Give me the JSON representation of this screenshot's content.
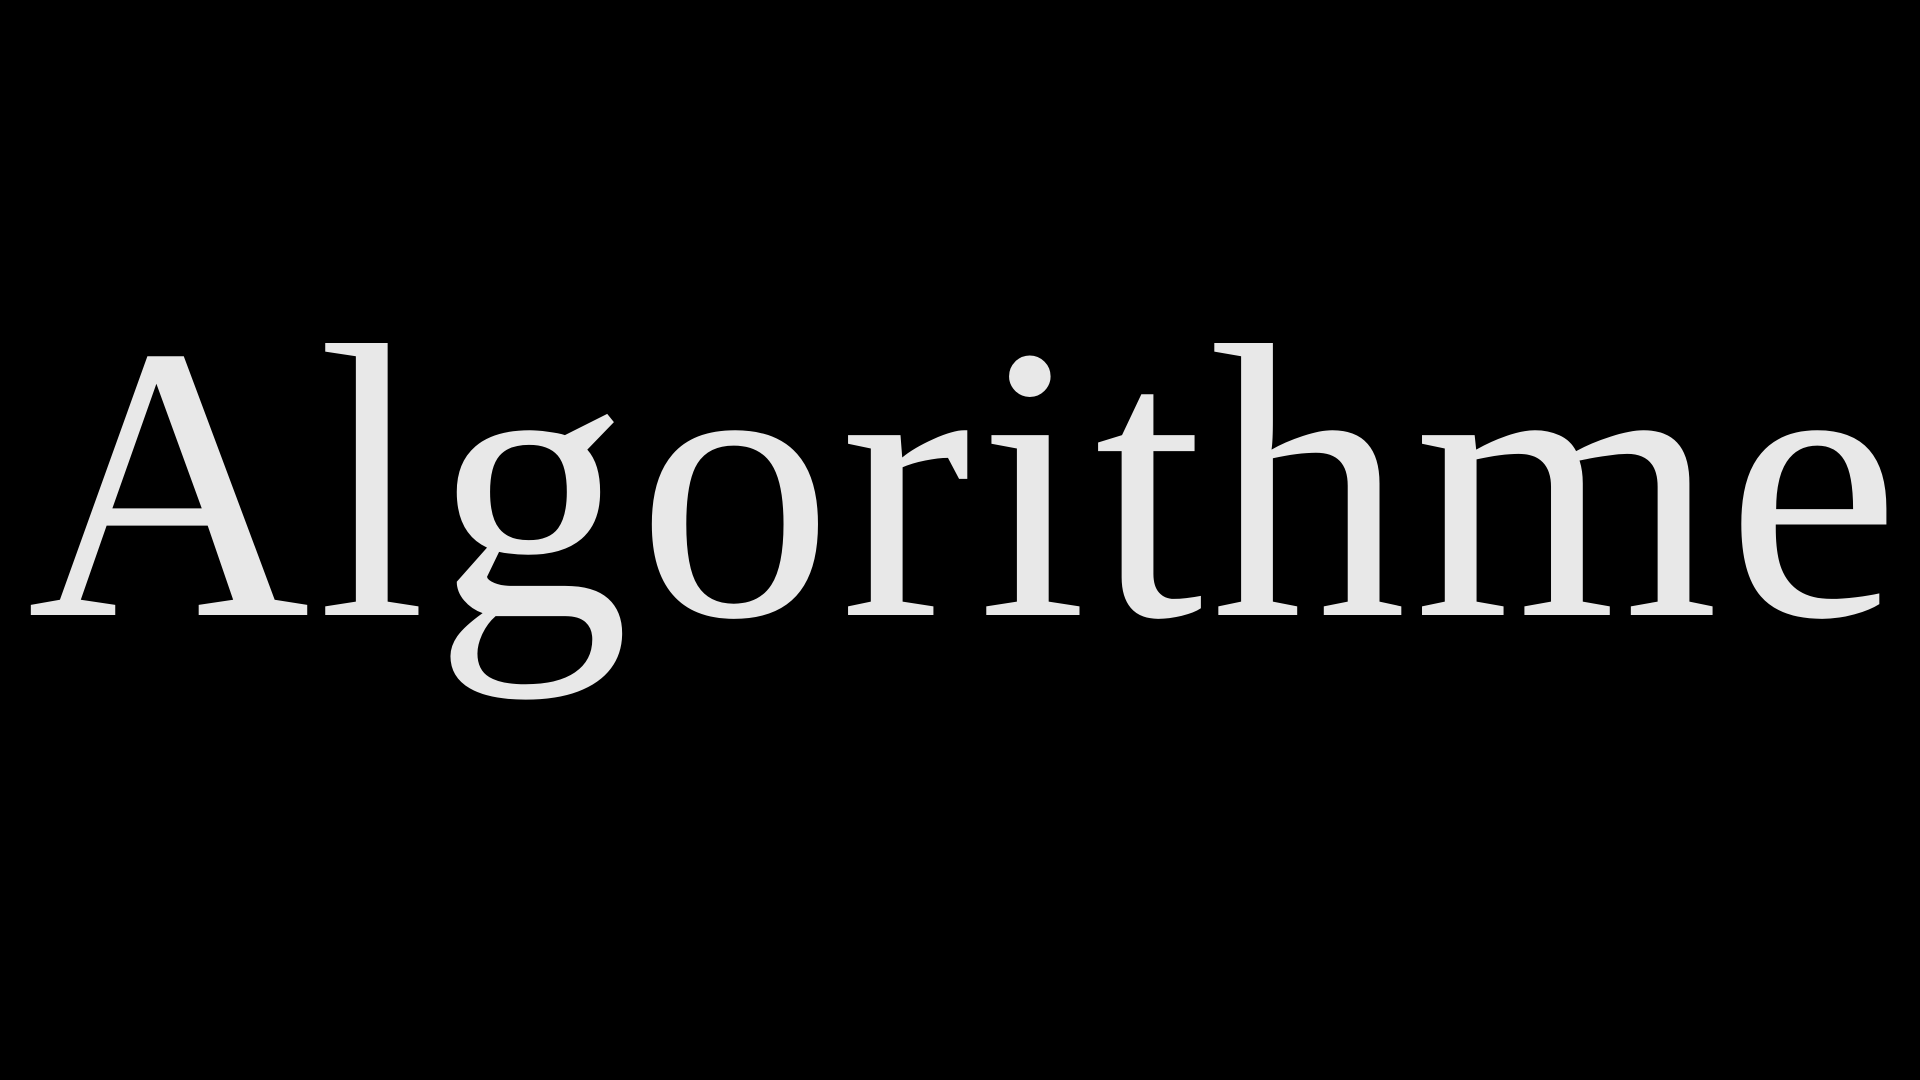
{
  "title": "Algorithme"
}
